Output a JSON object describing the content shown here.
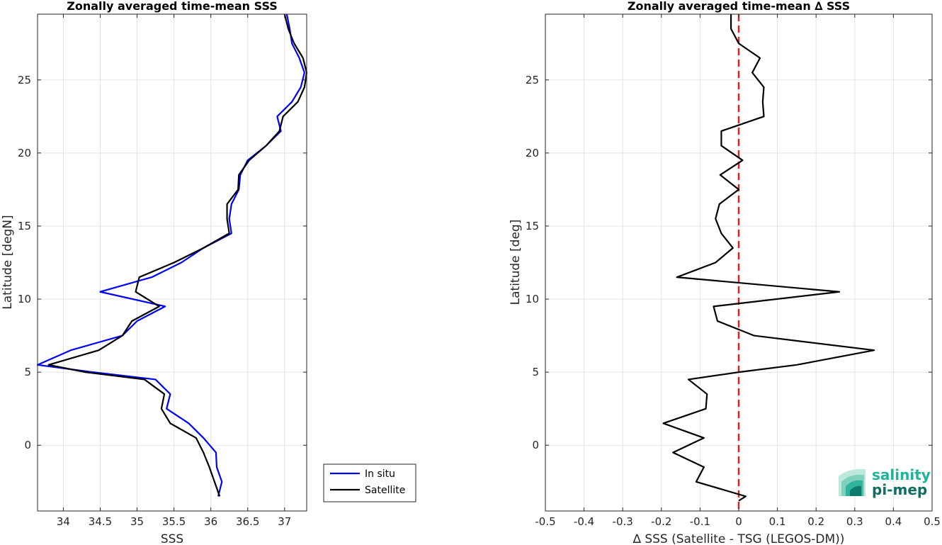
{
  "chart_data": [
    {
      "type": "line",
      "title": "Zonally averaged time-mean SSS",
      "xlabel": "SSS",
      "ylabel": "Latitude [degN]",
      "xlim": [
        33.65,
        37.3
      ],
      "ylim": [
        -4.5,
        29.5
      ],
      "xticks": [
        "34",
        "34.5",
        "35",
        "35.5",
        "36",
        "36.5",
        "37"
      ],
      "yticks": [
        "0",
        "5",
        "10",
        "15",
        "20",
        "25"
      ],
      "grid": true,
      "legend_position": "bottom-right",
      "series": [
        {
          "name": "In situ",
          "color": "#0000ff",
          "points": [
            [
              36.1,
              -3.5
            ],
            [
              36.15,
              -2.5
            ],
            [
              36.08,
              -1.5
            ],
            [
              36.07,
              -0.5
            ],
            [
              35.9,
              0.5
            ],
            [
              35.7,
              1.5
            ],
            [
              35.4,
              2.5
            ],
            [
              35.45,
              3.5
            ],
            [
              35.25,
              4.5
            ],
            [
              34.4,
              5.0
            ],
            [
              33.65,
              5.5
            ],
            [
              34.1,
              6.5
            ],
            [
              34.8,
              7.5
            ],
            [
              35.0,
              8.5
            ],
            [
              35.38,
              9.5
            ],
            [
              34.5,
              10.5
            ],
            [
              35.2,
              11.5
            ],
            [
              35.6,
              12.5
            ],
            [
              35.9,
              13.5
            ],
            [
              36.28,
              14.5
            ],
            [
              36.25,
              15.5
            ],
            [
              36.28,
              16.5
            ],
            [
              36.38,
              17.5
            ],
            [
              36.4,
              18.5
            ],
            [
              36.5,
              19.5
            ],
            [
              36.75,
              20.5
            ],
            [
              36.95,
              21.5
            ],
            [
              36.9,
              22.5
            ],
            [
              37.1,
              23.5
            ],
            [
              37.22,
              24.5
            ],
            [
              37.27,
              25.5
            ],
            [
              37.2,
              26.5
            ],
            [
              37.1,
              27.5
            ],
            [
              37.07,
              28.5
            ],
            [
              37.03,
              29.5
            ]
          ]
        },
        {
          "name": "Satellite",
          "color": "#000000",
          "points": [
            [
              36.12,
              -3.5
            ],
            [
              36.05,
              -2.5
            ],
            [
              35.98,
              -1.5
            ],
            [
              35.9,
              -0.5
            ],
            [
              35.8,
              0.5
            ],
            [
              35.45,
              1.5
            ],
            [
              35.33,
              2.5
            ],
            [
              35.37,
              3.5
            ],
            [
              35.1,
              4.5
            ],
            [
              34.3,
              5.0
            ],
            [
              33.8,
              5.5
            ],
            [
              34.48,
              6.5
            ],
            [
              34.8,
              7.5
            ],
            [
              34.93,
              8.5
            ],
            [
              35.3,
              9.5
            ],
            [
              34.98,
              10.5
            ],
            [
              35.03,
              11.5
            ],
            [
              35.5,
              12.5
            ],
            [
              35.9,
              13.5
            ],
            [
              36.25,
              14.5
            ],
            [
              36.22,
              15.5
            ],
            [
              36.22,
              16.5
            ],
            [
              36.37,
              17.5
            ],
            [
              36.38,
              18.5
            ],
            [
              36.52,
              19.5
            ],
            [
              36.75,
              20.5
            ],
            [
              36.93,
              21.5
            ],
            [
              36.98,
              22.5
            ],
            [
              37.18,
              23.5
            ],
            [
              37.27,
              24.5
            ],
            [
              37.3,
              25.5
            ],
            [
              37.25,
              26.5
            ],
            [
              37.13,
              27.5
            ],
            [
              37.05,
              28.5
            ],
            [
              37.0,
              29.5
            ]
          ]
        }
      ]
    },
    {
      "type": "line",
      "title": "Zonally averaged time-mean ∆ SSS",
      "xlabel": "∆ SSS (Satellite - TSG (LEGOS-DM))",
      "ylabel": "Latitude [deg]",
      "xlim": [
        -0.5,
        0.5
      ],
      "ylim": [
        -4.5,
        29.5
      ],
      "xticks": [
        "-0.5",
        "-0.4",
        "-0.3",
        "-0.2",
        "-0.1",
        "0",
        "0.1",
        "0.2",
        "0.3",
        "0.4",
        "0.5"
      ],
      "yticks": [
        "0",
        "5",
        "10",
        "15",
        "20",
        "25"
      ],
      "grid": true,
      "reference_line": {
        "x": 0,
        "color": "#dd2222",
        "style": "dashed"
      },
      "series": [
        {
          "color": "#000000",
          "points": [
            [
              0.0,
              -3.8
            ],
            [
              0.018,
              -3.5
            ],
            [
              -0.11,
              -2.5
            ],
            [
              -0.09,
              -1.5
            ],
            [
              -0.17,
              -0.5
            ],
            [
              -0.09,
              0.5
            ],
            [
              -0.195,
              1.5
            ],
            [
              -0.085,
              2.5
            ],
            [
              -0.082,
              3.5
            ],
            [
              -0.13,
              4.5
            ],
            [
              0.0,
              5.0
            ],
            [
              0.15,
              5.5
            ],
            [
              0.35,
              6.5
            ],
            [
              0.04,
              7.5
            ],
            [
              -0.055,
              8.5
            ],
            [
              -0.065,
              9.5
            ],
            [
              0.26,
              10.5
            ],
            [
              -0.16,
              11.5
            ],
            [
              -0.06,
              12.5
            ],
            [
              -0.015,
              13.5
            ],
            [
              -0.045,
              14.5
            ],
            [
              -0.06,
              15.5
            ],
            [
              -0.05,
              16.5
            ],
            [
              0.0,
              17.5
            ],
            [
              -0.048,
              18.5
            ],
            [
              0.01,
              19.5
            ],
            [
              -0.045,
              20.5
            ],
            [
              -0.045,
              21.5
            ],
            [
              0.065,
              22.5
            ],
            [
              0.062,
              23.5
            ],
            [
              0.065,
              24.5
            ],
            [
              0.035,
              25.5
            ],
            [
              0.055,
              26.5
            ],
            [
              0.0,
              27.5
            ],
            [
              -0.02,
              28.5
            ],
            [
              -0.02,
              29.5
            ]
          ]
        }
      ]
    }
  ],
  "logo": {
    "line1": "salinity",
    "line2": "pi-mep",
    "color_line1": "#1fb39a",
    "color_line2": "#0e6e62"
  }
}
